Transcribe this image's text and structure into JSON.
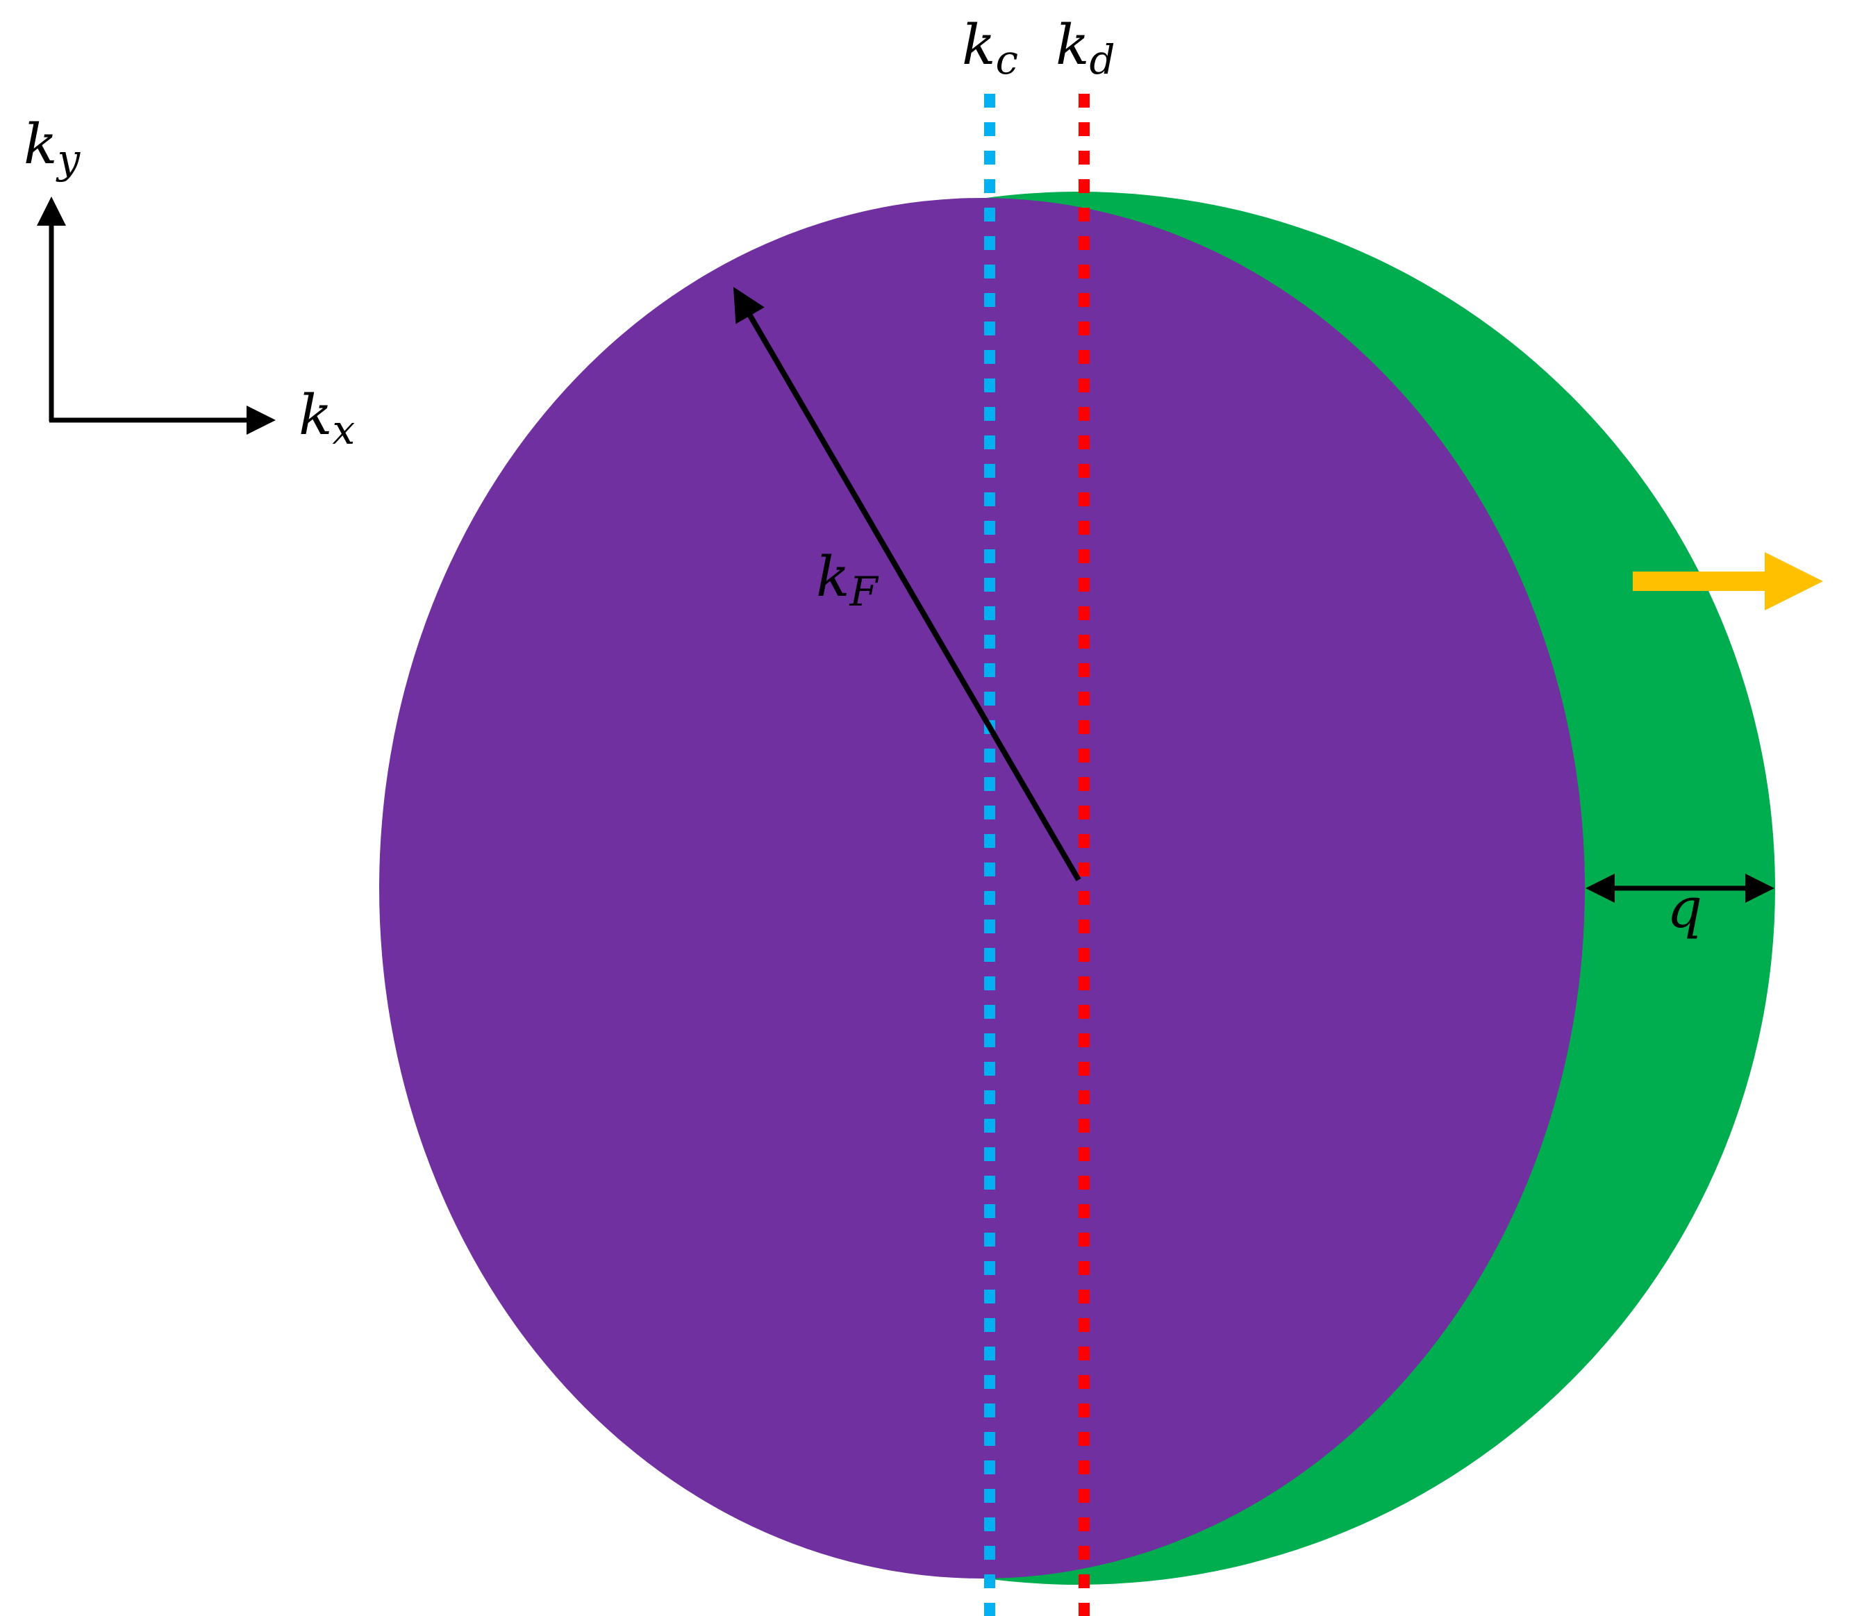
{
  "labels": {
    "kc": {
      "symbol": "k",
      "subscript": "c"
    },
    "kd": {
      "symbol": "k",
      "subscript": "d"
    },
    "ky": {
      "symbol": "k",
      "subscript": "y"
    },
    "kx": {
      "symbol": "k",
      "subscript": "x"
    },
    "kF": {
      "symbol": "k",
      "subscript": "F"
    },
    "q": "q"
  }
}
